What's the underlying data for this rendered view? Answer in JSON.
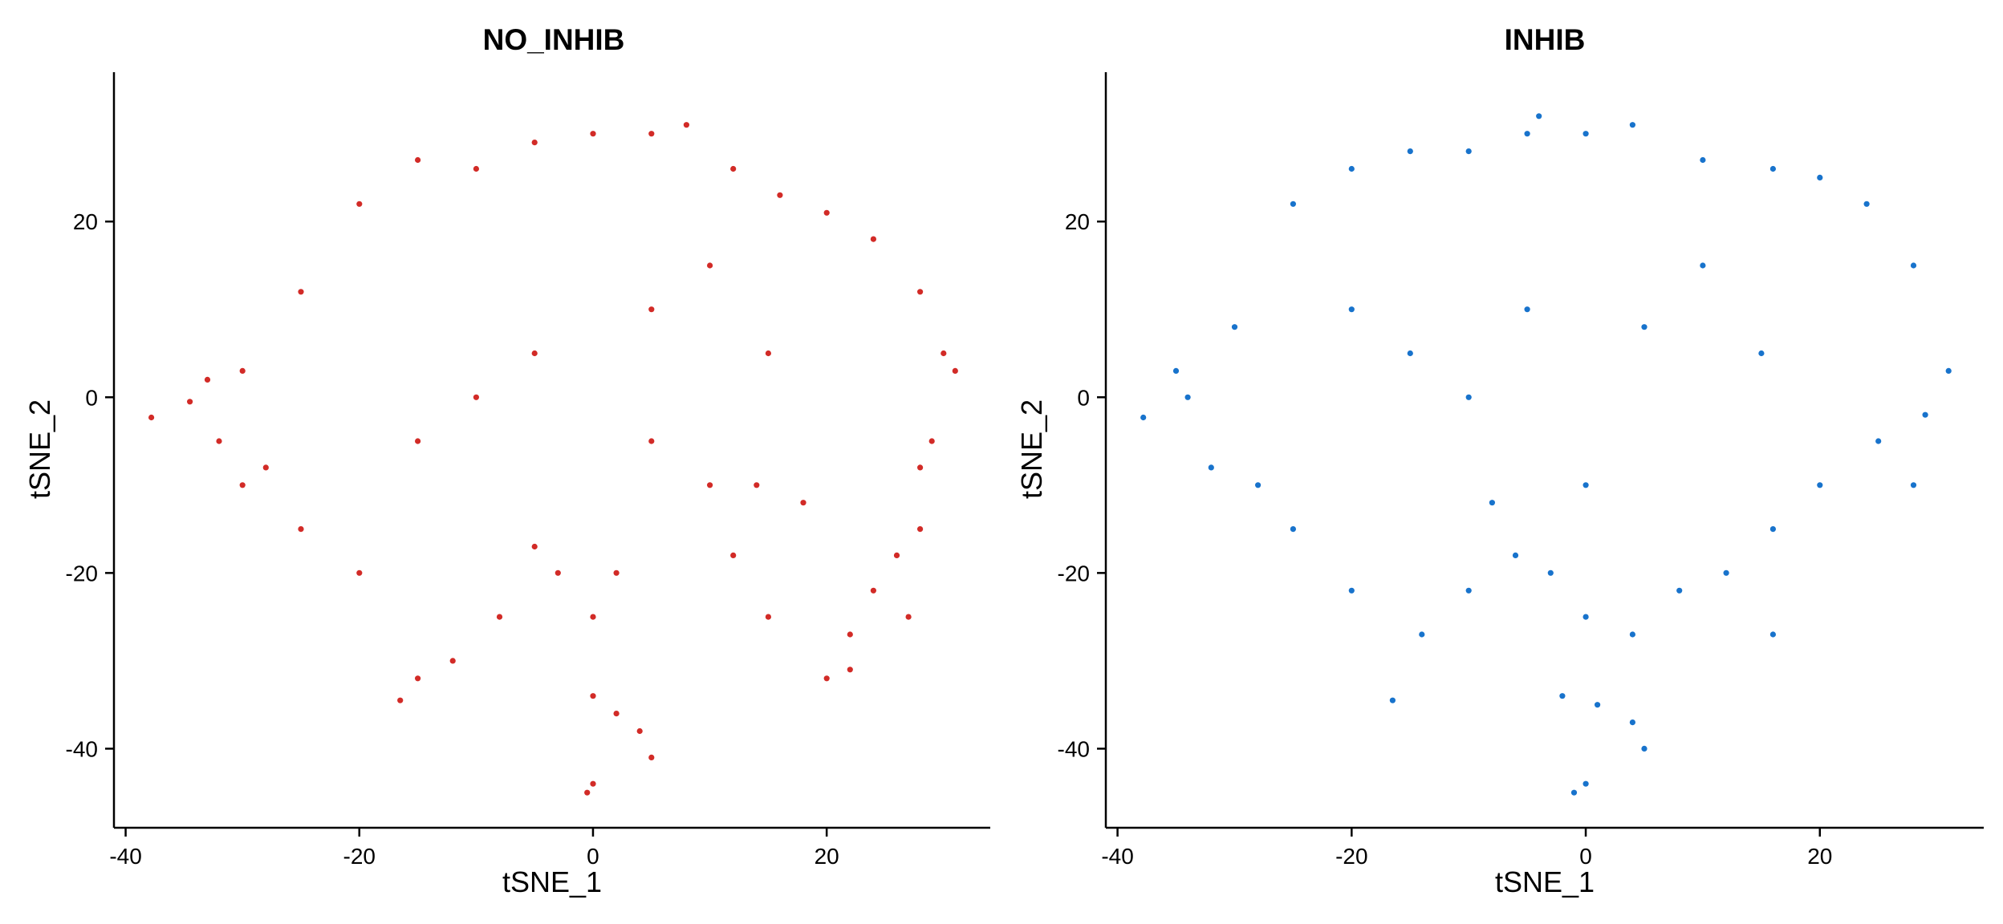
{
  "chart_data": [
    {
      "type": "scatter",
      "title": "NO_INHIB",
      "xlabel": "tSNE_1",
      "ylabel": "tSNE_2",
      "xlim": [
        -41,
        34
      ],
      "ylim": [
        -49,
        37
      ],
      "xticks": [
        -40,
        -20,
        0,
        20
      ],
      "yticks": [
        20,
        0,
        -20,
        -40
      ],
      "xtick_labels": [
        "-40",
        "-20",
        "0",
        "20"
      ],
      "ytick_labels": [
        "20",
        "0",
        "-20",
        "-40"
      ],
      "color": "#D22B27",
      "legend": "none",
      "grid": false,
      "approx_point_count": 6000,
      "series": [
        {
          "values": [
            [
              -37.8,
              -2.3
            ],
            [
              -34.5,
              -0.5
            ],
            [
              -30,
              3
            ],
            [
              -25,
              12
            ],
            [
              -20,
              22
            ],
            [
              -15,
              27
            ],
            [
              -10,
              26
            ],
            [
              -5,
              29
            ],
            [
              0,
              30
            ],
            [
              5,
              30
            ],
            [
              8,
              31
            ],
            [
              12,
              26
            ],
            [
              16,
              23
            ],
            [
              20,
              21
            ],
            [
              24,
              18
            ],
            [
              28,
              12
            ],
            [
              30,
              5
            ],
            [
              31,
              3
            ],
            [
              29,
              -5
            ],
            [
              28,
              -15
            ],
            [
              27,
              -25
            ],
            [
              22,
              -31
            ],
            [
              20,
              -32
            ],
            [
              15,
              -25
            ],
            [
              12,
              -18
            ],
            [
              10,
              -10
            ],
            [
              5,
              -5
            ],
            [
              2,
              -20
            ],
            [
              0,
              -25
            ],
            [
              -3,
              -20
            ],
            [
              -5,
              -17
            ],
            [
              -8,
              -25
            ],
            [
              -12,
              -30
            ],
            [
              -15,
              -32
            ],
            [
              -16.5,
              -34.5
            ],
            [
              -20,
              -20
            ],
            [
              -25,
              -15
            ],
            [
              -28,
              -8
            ],
            [
              -32,
              -5
            ],
            [
              -33,
              2
            ],
            [
              -30,
              -10
            ],
            [
              0,
              -34
            ],
            [
              2,
              -36
            ],
            [
              4,
              -38
            ],
            [
              5,
              -41
            ],
            [
              0,
              -44
            ],
            [
              -0.5,
              -45
            ],
            [
              22,
              -27
            ],
            [
              24,
              -22
            ],
            [
              26,
              -18
            ],
            [
              28,
              -8
            ],
            [
              14,
              -10
            ],
            [
              18,
              -12
            ],
            [
              -10,
              0
            ],
            [
              -15,
              -5
            ],
            [
              -5,
              5
            ],
            [
              5,
              10
            ],
            [
              10,
              15
            ],
            [
              15,
              5
            ]
          ]
        }
      ]
    },
    {
      "type": "scatter",
      "title": "INHIB",
      "xlabel": "tSNE_1",
      "ylabel": "tSNE_2",
      "xlim": [
        -41,
        34
      ],
      "ylim": [
        -49,
        37
      ],
      "xticks": [
        -40,
        -20,
        0,
        20
      ],
      "yticks": [
        20,
        0,
        -20,
        -40
      ],
      "xtick_labels": [
        "-40",
        "-20",
        "0",
        "20"
      ],
      "ytick_labels": [
        "20",
        "0",
        "-20",
        "-40"
      ],
      "color": "#1873CC",
      "legend": "none",
      "grid": false,
      "approx_point_count": 7000,
      "series": [
        {
          "values": [
            [
              -37.8,
              -2.3
            ],
            [
              -35,
              3
            ],
            [
              -30,
              8
            ],
            [
              -25,
              22
            ],
            [
              -20,
              26
            ],
            [
              -15,
              28
            ],
            [
              -10,
              28
            ],
            [
              -5,
              30
            ],
            [
              -4,
              32
            ],
            [
              0,
              30
            ],
            [
              4,
              31
            ],
            [
              10,
              27
            ],
            [
              16,
              26
            ],
            [
              20,
              25
            ],
            [
              24,
              22
            ],
            [
              28,
              15
            ],
            [
              31,
              3
            ],
            [
              29,
              -2
            ],
            [
              28,
              -10
            ],
            [
              25,
              -5
            ],
            [
              20,
              -10
            ],
            [
              16,
              -15
            ],
            [
              16,
              -27
            ],
            [
              12,
              -20
            ],
            [
              8,
              -22
            ],
            [
              4,
              -27
            ],
            [
              0,
              -25
            ],
            [
              -3,
              -20
            ],
            [
              -6,
              -18
            ],
            [
              -10,
              -22
            ],
            [
              -14,
              -27
            ],
            [
              -16.5,
              -34.5
            ],
            [
              -20,
              -22
            ],
            [
              -25,
              -15
            ],
            [
              -28,
              -10
            ],
            [
              -32,
              -8
            ],
            [
              -34,
              0
            ],
            [
              -2,
              -34
            ],
            [
              1,
              -35
            ],
            [
              4,
              -37
            ],
            [
              5,
              -40
            ],
            [
              0,
              -44
            ],
            [
              -1,
              -45
            ],
            [
              -10,
              0
            ],
            [
              -15,
              5
            ],
            [
              -5,
              10
            ],
            [
              5,
              8
            ],
            [
              10,
              15
            ],
            [
              15,
              5
            ],
            [
              -20,
              10
            ],
            [
              0,
              -10
            ],
            [
              -8,
              -12
            ]
          ]
        }
      ]
    }
  ]
}
